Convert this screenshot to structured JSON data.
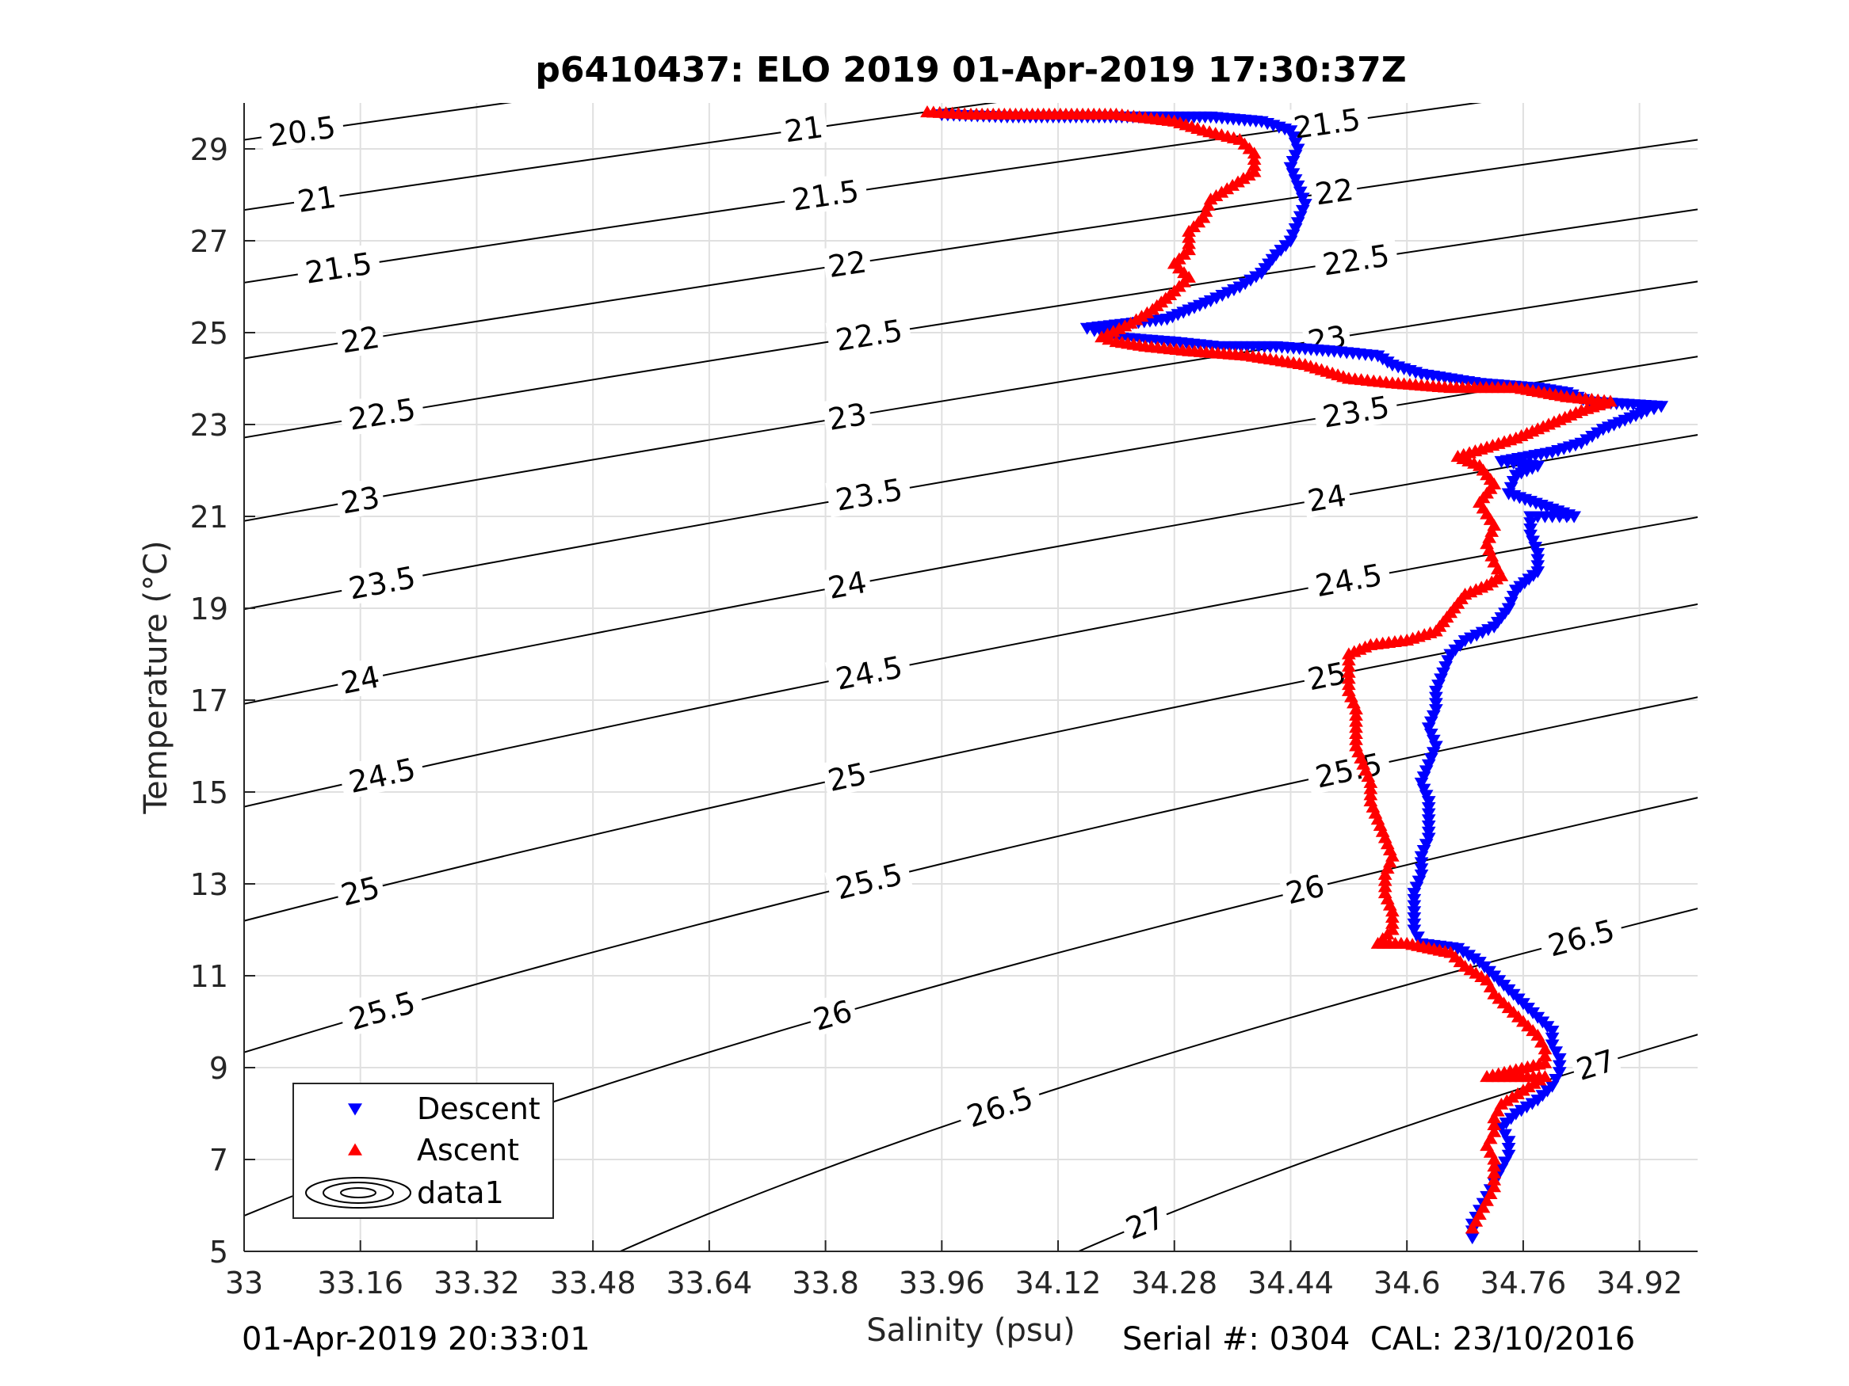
{
  "footer": {
    "left": "01-Apr-2019 20:33:01",
    "right": "Serial #: 0304  CAL: 23/10/2016"
  },
  "chart_data": {
    "type": "scatter",
    "title": "p6410437: ELO 2019 01-Apr-2019 17:30:37Z",
    "xlabel": "Salinity (psu)",
    "ylabel": "Temperature (°C)",
    "xlim": [
      33.0,
      35.0
    ],
    "ylim": [
      5.0,
      30.0
    ],
    "xticks": [
      "33",
      "33.16",
      "33.32",
      "33.48",
      "33.64",
      "33.8",
      "33.96",
      "34.12",
      "34.28",
      "34.44",
      "34.6",
      "34.76",
      "34.92"
    ],
    "yticks": [
      "5",
      "7",
      "9",
      "11",
      "13",
      "15",
      "17",
      "19",
      "21",
      "23",
      "25",
      "27",
      "29"
    ],
    "grid": true,
    "legend": {
      "position": "bottom-left",
      "entries": [
        "Descent",
        "Ascent",
        "data1"
      ]
    },
    "colors": {
      "descent": "#0000ff",
      "ascent": "#ff0000",
      "contour": "#000000",
      "grid": "#e0e0e0"
    },
    "series": [
      {
        "name": "Descent",
        "marker": "triangle-down",
        "points": [
          [
            34.69,
            5.3
          ],
          [
            34.69,
            5.6
          ],
          [
            34.7,
            5.9
          ],
          [
            34.71,
            6.2
          ],
          [
            34.72,
            6.5
          ],
          [
            34.73,
            6.8
          ],
          [
            34.74,
            7.1
          ],
          [
            34.74,
            7.4
          ],
          [
            34.73,
            7.7
          ],
          [
            34.75,
            8.0
          ],
          [
            34.78,
            8.3
          ],
          [
            34.8,
            8.6
          ],
          [
            34.81,
            8.9
          ],
          [
            34.81,
            9.2
          ],
          [
            34.8,
            9.5
          ],
          [
            34.8,
            9.8
          ],
          [
            34.78,
            10.1
          ],
          [
            34.76,
            10.4
          ],
          [
            34.74,
            10.7
          ],
          [
            34.72,
            11.0
          ],
          [
            34.7,
            11.3
          ],
          [
            34.67,
            11.6
          ],
          [
            34.62,
            11.7
          ],
          [
            34.61,
            12.0
          ],
          [
            34.61,
            12.4
          ],
          [
            34.61,
            12.8
          ],
          [
            34.62,
            13.2
          ],
          [
            34.62,
            13.6
          ],
          [
            34.63,
            14.0
          ],
          [
            34.63,
            14.4
          ],
          [
            34.63,
            14.8
          ],
          [
            34.62,
            15.2
          ],
          [
            34.63,
            15.6
          ],
          [
            34.64,
            16.0
          ],
          [
            34.63,
            16.4
          ],
          [
            34.64,
            16.8
          ],
          [
            34.64,
            17.2
          ],
          [
            34.65,
            17.6
          ],
          [
            34.66,
            18.0
          ],
          [
            34.68,
            18.3
          ],
          [
            34.72,
            18.6
          ],
          [
            34.74,
            19.0
          ],
          [
            34.75,
            19.4
          ],
          [
            34.78,
            19.8
          ],
          [
            34.78,
            20.2
          ],
          [
            34.77,
            20.6
          ],
          [
            34.77,
            21.0
          ],
          [
            34.8,
            21.0
          ],
          [
            34.83,
            21.0
          ],
          [
            34.74,
            21.5
          ],
          [
            34.75,
            21.9
          ],
          [
            34.78,
            22.1
          ],
          [
            34.73,
            22.2
          ],
          [
            34.8,
            22.4
          ],
          [
            34.84,
            22.6
          ],
          [
            34.87,
            22.9
          ],
          [
            34.9,
            23.1
          ],
          [
            34.93,
            23.3
          ],
          [
            34.95,
            23.4
          ],
          [
            34.85,
            23.5
          ],
          [
            34.82,
            23.7
          ],
          [
            34.78,
            23.8
          ],
          [
            34.7,
            23.9
          ],
          [
            34.62,
            24.1
          ],
          [
            34.58,
            24.3
          ],
          [
            34.56,
            24.5
          ],
          [
            34.5,
            24.6
          ],
          [
            34.42,
            24.7
          ],
          [
            34.34,
            24.7
          ],
          [
            34.28,
            24.8
          ],
          [
            34.2,
            24.9
          ],
          [
            34.18,
            25.0
          ],
          [
            34.16,
            25.1
          ],
          [
            34.27,
            25.3
          ],
          [
            34.33,
            25.7
          ],
          [
            34.37,
            26.0
          ],
          [
            34.4,
            26.3
          ],
          [
            34.42,
            26.7
          ],
          [
            34.44,
            27.0
          ],
          [
            34.45,
            27.4
          ],
          [
            34.46,
            27.8
          ],
          [
            34.45,
            28.2
          ],
          [
            34.44,
            28.6
          ],
          [
            34.45,
            29.0
          ],
          [
            34.44,
            29.4
          ],
          [
            34.4,
            29.6
          ],
          [
            34.33,
            29.7
          ],
          [
            34.2,
            29.7
          ],
          [
            34.05,
            29.7
          ],
          [
            33.96,
            29.75
          ]
        ]
      },
      {
        "name": "Ascent",
        "marker": "triangle-up",
        "points": [
          [
            34.69,
            5.5
          ],
          [
            34.7,
            5.8
          ],
          [
            34.71,
            6.1
          ],
          [
            34.72,
            6.4
          ],
          [
            34.72,
            6.7
          ],
          [
            34.72,
            7.0
          ],
          [
            34.71,
            7.3
          ],
          [
            34.72,
            7.6
          ],
          [
            34.72,
            7.9
          ],
          [
            34.73,
            8.2
          ],
          [
            34.76,
            8.5
          ],
          [
            34.79,
            8.8
          ],
          [
            34.71,
            8.8
          ],
          [
            34.79,
            9.1
          ],
          [
            34.79,
            9.4
          ],
          [
            34.78,
            9.7
          ],
          [
            34.76,
            10.0
          ],
          [
            34.74,
            10.3
          ],
          [
            34.72,
            10.6
          ],
          [
            34.71,
            10.9
          ],
          [
            34.68,
            11.2
          ],
          [
            34.66,
            11.5
          ],
          [
            34.6,
            11.7
          ],
          [
            34.56,
            11.7
          ],
          [
            34.58,
            12.0
          ],
          [
            34.58,
            12.4
          ],
          [
            34.57,
            12.8
          ],
          [
            34.57,
            13.2
          ],
          [
            34.58,
            13.6
          ],
          [
            34.57,
            14.0
          ],
          [
            34.56,
            14.4
          ],
          [
            34.55,
            14.8
          ],
          [
            34.55,
            15.2
          ],
          [
            34.54,
            15.6
          ],
          [
            34.53,
            16.0
          ],
          [
            34.53,
            16.4
          ],
          [
            34.53,
            16.8
          ],
          [
            34.52,
            17.2
          ],
          [
            34.52,
            17.6
          ],
          [
            34.52,
            18.0
          ],
          [
            34.55,
            18.2
          ],
          [
            34.6,
            18.3
          ],
          [
            34.64,
            18.5
          ],
          [
            34.66,
            18.9
          ],
          [
            34.68,
            19.3
          ],
          [
            34.71,
            19.5
          ],
          [
            34.73,
            19.7
          ],
          [
            34.72,
            20.0
          ],
          [
            34.71,
            20.4
          ],
          [
            34.72,
            20.8
          ],
          [
            34.7,
            21.3
          ],
          [
            34.72,
            21.7
          ],
          [
            34.7,
            22.1
          ],
          [
            34.67,
            22.3
          ],
          [
            34.71,
            22.5
          ],
          [
            34.75,
            22.7
          ],
          [
            34.78,
            22.9
          ],
          [
            34.81,
            23.1
          ],
          [
            34.84,
            23.3
          ],
          [
            34.88,
            23.5
          ],
          [
            34.82,
            23.6
          ],
          [
            34.75,
            23.8
          ],
          [
            34.66,
            23.8
          ],
          [
            34.58,
            23.9
          ],
          [
            34.52,
            24.0
          ],
          [
            34.46,
            24.3
          ],
          [
            34.38,
            24.5
          ],
          [
            34.3,
            24.6
          ],
          [
            34.24,
            24.7
          ],
          [
            34.2,
            24.8
          ],
          [
            34.18,
            24.9
          ],
          [
            34.22,
            25.2
          ],
          [
            34.25,
            25.5
          ],
          [
            34.28,
            25.9
          ],
          [
            34.3,
            26.2
          ],
          [
            34.28,
            26.5
          ],
          [
            34.3,
            26.8
          ],
          [
            34.3,
            27.2
          ],
          [
            34.32,
            27.5
          ],
          [
            34.33,
            27.9
          ],
          [
            34.36,
            28.2
          ],
          [
            34.39,
            28.5
          ],
          [
            34.39,
            28.9
          ],
          [
            34.37,
            29.2
          ],
          [
            34.32,
            29.4
          ],
          [
            34.28,
            29.6
          ],
          [
            34.2,
            29.75
          ],
          [
            34.1,
            29.75
          ],
          [
            34.0,
            29.75
          ],
          [
            33.94,
            29.8
          ]
        ]
      }
    ],
    "contour_labels": [
      "20.5",
      "21",
      "21",
      "21.5",
      "21.5",
      "21.5",
      "22",
      "22",
      "22",
      "22.5",
      "22.5",
      "22.5",
      "23",
      "23",
      "23",
      "23.5",
      "23.5",
      "23.5",
      "24",
      "24",
      "24",
      "24.5",
      "24.5",
      "24.5",
      "25",
      "25",
      "25",
      "25.5",
      "25.5",
      "25.5",
      "26",
      "26",
      "26",
      "26.5",
      "26.5",
      "27",
      "27"
    ],
    "contours": [
      {
        "sigma": 20.5,
        "labels": [
          {
            "x": 33.08,
            "y": 29.55,
            "text_index": 0
          }
        ]
      },
      {
        "sigma": 21.0,
        "labels": [
          {
            "x": 33.1,
            "y": 28.0,
            "text_index": 1
          },
          {
            "x": 33.77,
            "y": 29.6,
            "text_index": 2
          }
        ]
      },
      {
        "sigma": 21.5,
        "labels": [
          {
            "x": 33.13,
            "y": 26.5,
            "text_index": 3
          },
          {
            "x": 33.8,
            "y": 28.1,
            "text_index": 4
          },
          {
            "x": 34.49,
            "y": 29.7,
            "text_index": 5
          }
        ]
      },
      {
        "sigma": 22.0,
        "labels": [
          {
            "x": 33.16,
            "y": 24.9,
            "text_index": 6
          },
          {
            "x": 33.83,
            "y": 26.5,
            "text_index": 7
          },
          {
            "x": 34.5,
            "y": 28.1,
            "text_index": 8
          }
        ]
      },
      {
        "sigma": 22.5,
        "labels": [
          {
            "x": 33.19,
            "y": 23.2,
            "text_index": 9
          },
          {
            "x": 33.86,
            "y": 24.9,
            "text_index": 10
          },
          {
            "x": 34.53,
            "y": 26.5,
            "text_index": 11
          }
        ]
      },
      {
        "sigma": 23.0,
        "labels": [
          {
            "x": 33.16,
            "y": 21.5,
            "text_index": 12
          },
          {
            "x": 33.83,
            "y": 23.2,
            "text_index": 13
          },
          {
            "x": 34.49,
            "y": 24.8,
            "text_index": 14
          }
        ]
      },
      {
        "sigma": 23.5,
        "labels": [
          {
            "x": 33.19,
            "y": 19.8,
            "text_index": 15
          },
          {
            "x": 33.86,
            "y": 21.5,
            "text_index": 16
          },
          {
            "x": 34.53,
            "y": 23.2,
            "text_index": 17
          }
        ]
      },
      {
        "sigma": 24.0,
        "labels": [
          {
            "x": 33.16,
            "y": 18.0,
            "text_index": 18
          },
          {
            "x": 33.83,
            "y": 19.7,
            "text_index": 19
          },
          {
            "x": 34.49,
            "y": 21.4,
            "text_index": 20
          }
        ]
      },
      {
        "sigma": 24.5,
        "labels": [
          {
            "x": 33.19,
            "y": 16.0,
            "text_index": 21
          },
          {
            "x": 33.86,
            "y": 17.9,
            "text_index": 22
          },
          {
            "x": 34.52,
            "y": 19.6,
            "text_index": 23
          }
        ]
      },
      {
        "sigma": 25.0,
        "labels": [
          {
            "x": 33.16,
            "y": 13.9,
            "text_index": 24
          },
          {
            "x": 33.83,
            "y": 15.8,
            "text_index": 25
          },
          {
            "x": 34.49,
            "y": 17.6,
            "text_index": 26
          }
        ]
      },
      {
        "sigma": 25.5,
        "labels": [
          {
            "x": 33.19,
            "y": 11.2,
            "text_index": 27
          },
          {
            "x": 33.86,
            "y": 13.9,
            "text_index": 28
          },
          {
            "x": 34.52,
            "y": 15.6,
            "text_index": 29
          }
        ]
      },
      {
        "sigma": 26.0,
        "labels": [
          {
            "x": 33.17,
            "y": 6.7,
            "text_index": 30
          },
          {
            "x": 33.81,
            "y": 10.8,
            "text_index": 31
          },
          {
            "x": 34.46,
            "y": 13.2,
            "text_index": 32
          }
        ]
      },
      {
        "sigma": 26.5,
        "labels": [
          {
            "x": 34.04,
            "y": 8.8,
            "text_index": 33
          },
          {
            "x": 34.84,
            "y": 10.9,
            "text_index": 34
          }
        ]
      },
      {
        "sigma": 27.0,
        "labels": [
          {
            "x": 34.24,
            "y": 5.5,
            "text_index": 35
          },
          {
            "x": 34.86,
            "y": 9.0,
            "text_index": 36
          }
        ]
      }
    ]
  }
}
